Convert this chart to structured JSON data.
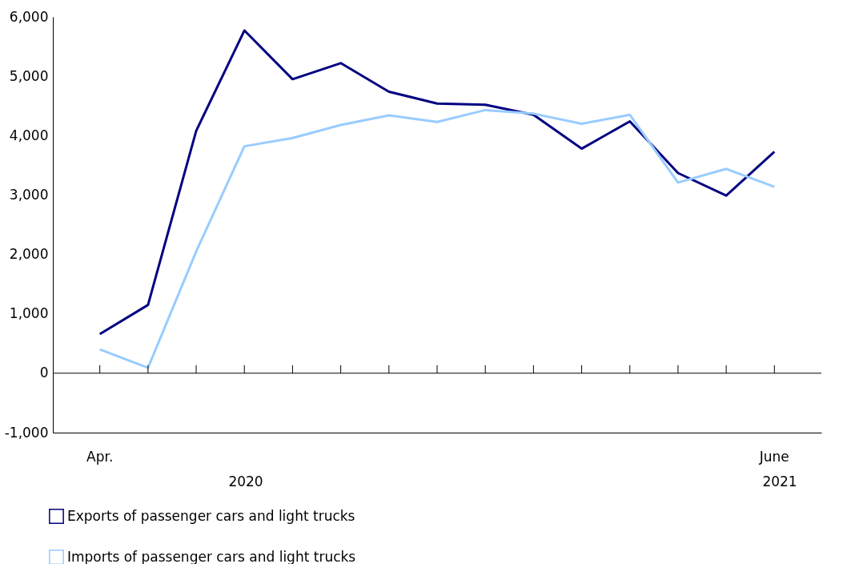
{
  "chart_data": {
    "type": "line",
    "categories": [
      "Apr.",
      null,
      null,
      null,
      null,
      null,
      null,
      null,
      null,
      null,
      null,
      null,
      null,
      null,
      "June"
    ],
    "series": [
      {
        "name": "Exports of passenger cars and light trucks",
        "color": "#000080",
        "values": [
          660,
          1150,
          4080,
          5770,
          4950,
          5220,
          4740,
          4540,
          4520,
          4350,
          3780,
          4240,
          3370,
          2990,
          3730
        ]
      },
      {
        "name": "Imports of passenger cars and light trucks",
        "color": "#99ccff",
        "values": [
          400,
          90,
          2050,
          3820,
          3960,
          4180,
          4340,
          4230,
          4430,
          4370,
          4200,
          4350,
          3210,
          3440,
          3140
        ]
      }
    ],
    "ylim": [
      -1000,
      6000
    ],
    "yticks": [
      {
        "value": -1000,
        "label": "-1,000"
      },
      0,
      {
        "value": 1000,
        "label": "1,000"
      },
      {
        "value": 2000,
        "label": "2,000"
      },
      {
        "value": 3000,
        "label": "3,000"
      },
      {
        "value": 4000,
        "label": "4,000"
      },
      {
        "value": 5000,
        "label": "5,000"
      },
      {
        "value": 6000,
        "label": "6,000"
      }
    ],
    "ref_lines": [
      {
        "axis": "y",
        "value": 0,
        "color": "#000000"
      }
    ],
    "annotations": [
      "2020",
      "2021"
    ],
    "legend": "bottom left",
    "grid": false,
    "marker": "none",
    "line_style": "solid"
  }
}
